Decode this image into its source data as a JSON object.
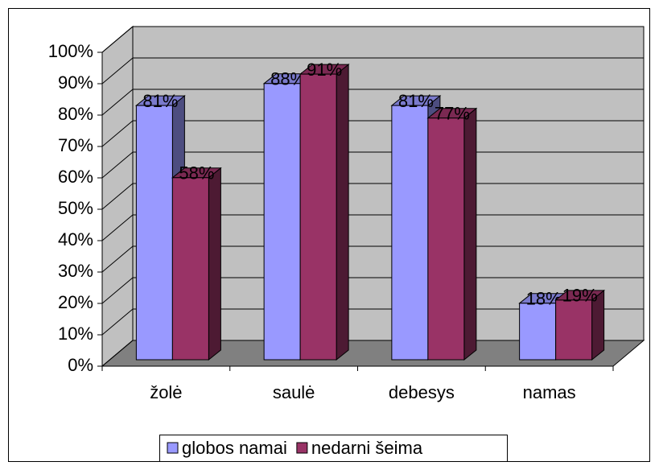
{
  "chart_data": {
    "type": "bar3d",
    "categories": [
      "žolė",
      "saulė",
      "debesys",
      "namas"
    ],
    "series": [
      {
        "name": "globos namai",
        "color": "#9999ff",
        "values": [
          81,
          88,
          81,
          18
        ],
        "value_labels": [
          "81%",
          "88%",
          "81%",
          "18%"
        ]
      },
      {
        "name": "nedarni šeima",
        "color": "#993366",
        "values": [
          58,
          91,
          77,
          19
        ],
        "value_labels": [
          "58%",
          "91%",
          "77%",
          "19%"
        ]
      }
    ],
    "ylim": [
      0,
      100
    ],
    "yticks": [
      {
        "value": 0,
        "label": "0%"
      },
      {
        "value": 10,
        "label": "10%"
      },
      {
        "value": 20,
        "label": "20%"
      },
      {
        "value": 30,
        "label": "30%"
      },
      {
        "value": 40,
        "label": "40%"
      },
      {
        "value": 50,
        "label": "50%"
      },
      {
        "value": 60,
        "label": "60%"
      },
      {
        "value": 70,
        "label": "70%"
      },
      {
        "value": 80,
        "label": "80%"
      },
      {
        "value": 90,
        "label": "90%"
      },
      {
        "value": 100,
        "label": "100%"
      }
    ],
    "grid": true,
    "legend": "bottom"
  }
}
